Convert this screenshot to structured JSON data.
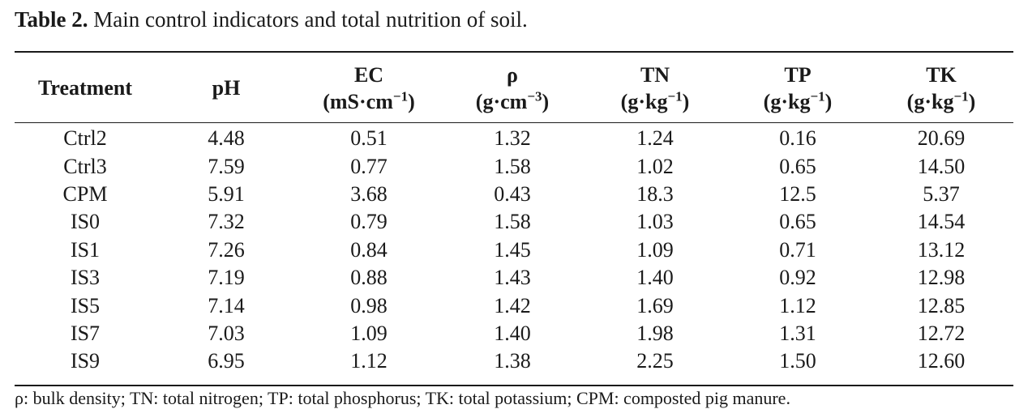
{
  "caption": {
    "label": "Table 2.",
    "text": "Main control indicators and total nutrition of soil."
  },
  "table": {
    "headers": [
      {
        "name": "Treatment",
        "unit": ""
      },
      {
        "name": "pH",
        "unit": ""
      },
      {
        "name": "EC",
        "unit_base": "(mS·cm",
        "unit_exp": "−1",
        "unit_close": ")"
      },
      {
        "name": "ρ",
        "unit_base": "(g·cm",
        "unit_exp": "−3",
        "unit_close": ")"
      },
      {
        "name": "TN",
        "unit_base": "(g·kg",
        "unit_exp": "−1",
        "unit_close": ")"
      },
      {
        "name": "TP",
        "unit_base": "(g·kg",
        "unit_exp": "−1",
        "unit_close": ")"
      },
      {
        "name": "TK",
        "unit_base": "(g·kg",
        "unit_exp": "−1",
        "unit_close": ")"
      }
    ],
    "rows": [
      [
        "Ctrl2",
        "4.48",
        "0.51",
        "1.32",
        "1.24",
        "0.16",
        "20.69"
      ],
      [
        "Ctrl3",
        "7.59",
        "0.77",
        "1.58",
        "1.02",
        "0.65",
        "14.50"
      ],
      [
        "CPM",
        "5.91",
        "3.68",
        "0.43",
        "18.3",
        "12.5",
        "5.37"
      ],
      [
        "IS0",
        "7.32",
        "0.79",
        "1.58",
        "1.03",
        "0.65",
        "14.54"
      ],
      [
        "IS1",
        "7.26",
        "0.84",
        "1.45",
        "1.09",
        "0.71",
        "13.12"
      ],
      [
        "IS3",
        "7.19",
        "0.88",
        "1.43",
        "1.40",
        "0.92",
        "12.98"
      ],
      [
        "IS5",
        "7.14",
        "0.98",
        "1.42",
        "1.69",
        "1.12",
        "12.85"
      ],
      [
        "IS7",
        "7.03",
        "1.09",
        "1.40",
        "1.98",
        "1.31",
        "12.72"
      ],
      [
        "IS9",
        "6.95",
        "1.12",
        "1.38",
        "2.25",
        "1.50",
        "12.60"
      ]
    ]
  },
  "footnote": "ρ: bulk density; TN: total nitrogen; TP: total phosphorus; TK: total potassium; CPM: composted pig manure."
}
